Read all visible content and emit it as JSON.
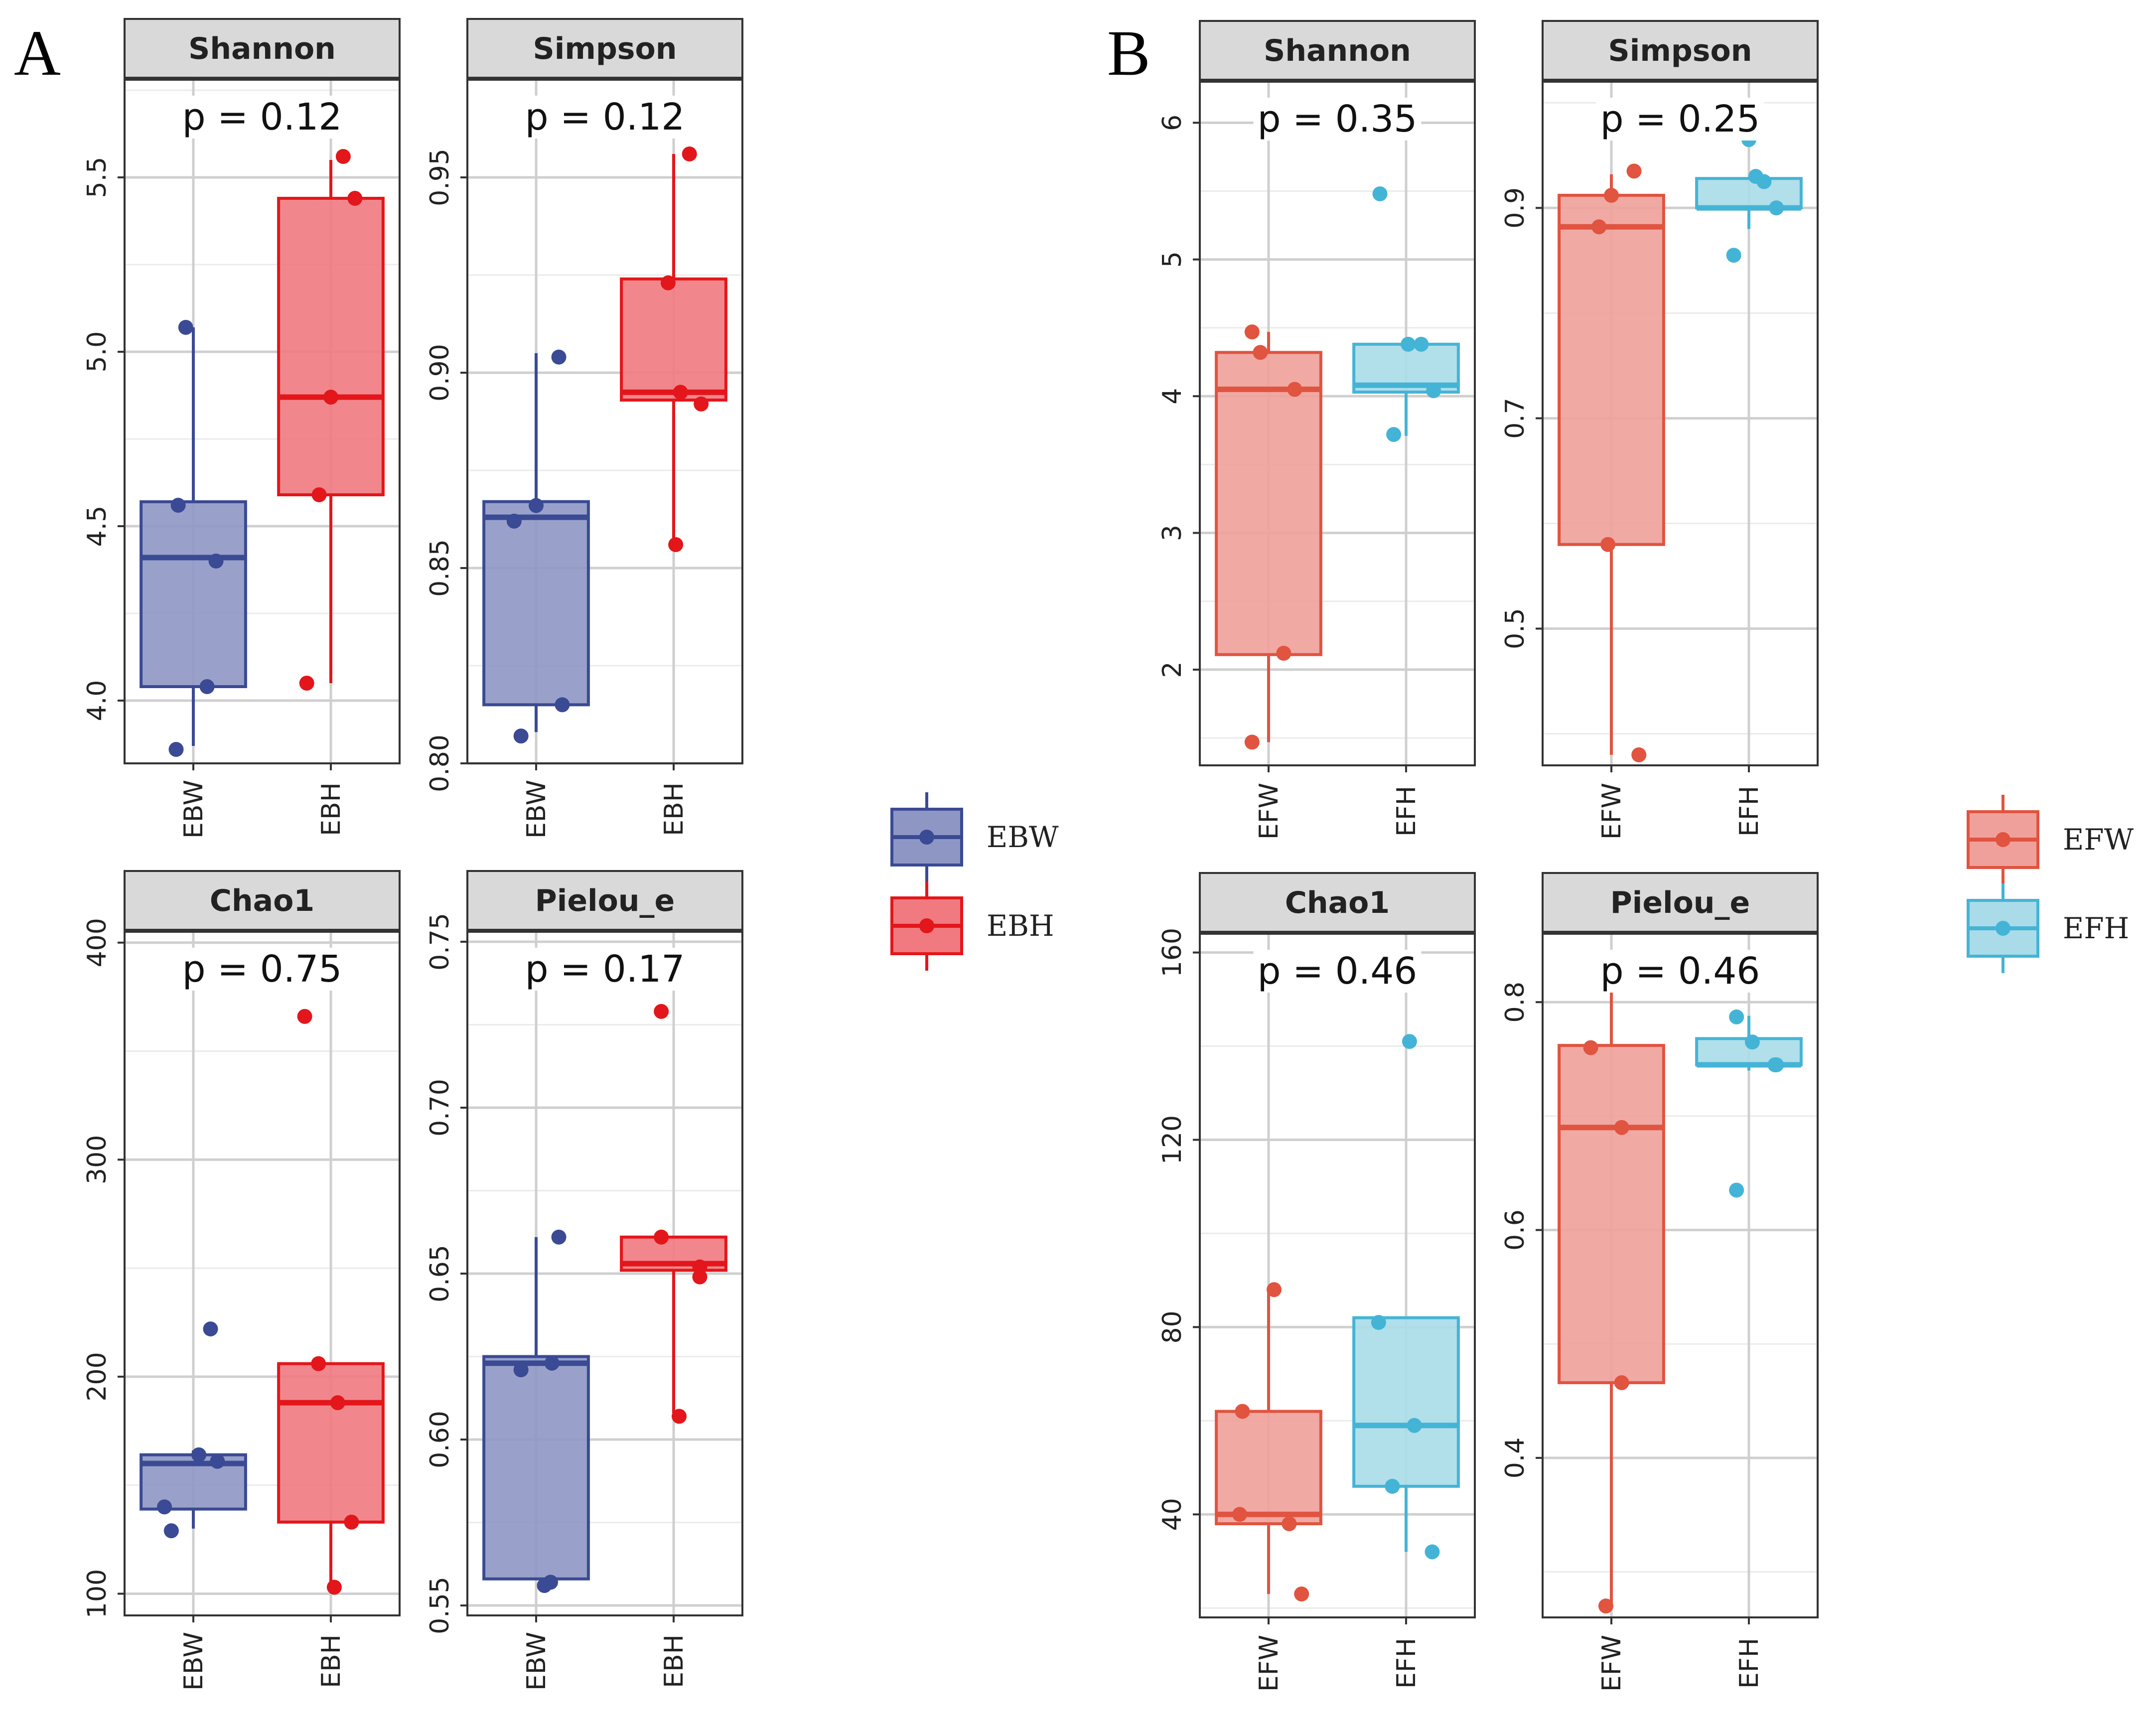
{
  "panels": [
    {
      "letter": "A",
      "groups": [
        "EBW",
        "EBH"
      ],
      "colors": {
        "EBW": "#3A4A94",
        "EBH": "#E3161B"
      },
      "fills": {
        "EBW": "#8E97C4",
        "EBH": "#F07A7F"
      },
      "legend": [
        {
          "name": "EBW",
          "color": "#3A4A94",
          "fill": "#8E97C4"
        },
        {
          "name": "EBH",
          "color": "#E3161B",
          "fill": "#F07A7F"
        }
      ]
    },
    {
      "letter": "B",
      "groups": [
        "EFW",
        "EFH"
      ],
      "colors": {
        "EFW": "#E05440",
        "EFH": "#44B4D6"
      },
      "fills": {
        "EFW": "#F0A09A",
        "EFH": "#A9DBE8"
      },
      "legend": [
        {
          "name": "EFW",
          "color": "#E05440",
          "fill": "#F0A09A"
        },
        {
          "name": "EFH",
          "color": "#44B4D6",
          "fill": "#A9DBE8"
        }
      ]
    }
  ],
  "chart_data": [
    {
      "type": "box",
      "panel": "A",
      "title": "Shannon",
      "p_label": "p = 0.12",
      "ylim": [
        3.82,
        5.78
      ],
      "yticks": [
        4.0,
        4.5,
        5.0,
        5.5
      ],
      "ytick_labels": [
        "4.0",
        "4.5",
        "5.0",
        "5.5"
      ],
      "categories": [
        "EBW",
        "EBH"
      ],
      "boxes": [
        {
          "group": "EBW",
          "min": 3.87,
          "q1": 4.04,
          "median": 4.41,
          "q3": 4.57,
          "max": 5.07
        },
        {
          "group": "EBH",
          "min": 4.05,
          "q1": 4.59,
          "median": 4.87,
          "q3": 5.44,
          "max": 5.55
        }
      ],
      "points": [
        {
          "group": "EBW",
          "jitter": -0.22,
          "y": 4.56
        },
        {
          "group": "EBW",
          "jitter": -0.25,
          "y": 3.86
        },
        {
          "group": "EBW",
          "jitter": -0.11,
          "y": 5.07
        },
        {
          "group": "EBW",
          "jitter": 0.2,
          "y": 4.04
        },
        {
          "group": "EBW",
          "jitter": 0.33,
          "y": 4.4
        },
        {
          "group": "EBH",
          "jitter": -0.35,
          "y": 4.05
        },
        {
          "group": "EBH",
          "jitter": -0.17,
          "y": 4.59
        },
        {
          "group": "EBH",
          "jitter": 0.0,
          "y": 4.87
        },
        {
          "group": "EBH",
          "jitter": 0.18,
          "y": 5.56
        },
        {
          "group": "EBH",
          "jitter": 0.35,
          "y": 5.44
        }
      ]
    },
    {
      "type": "box",
      "panel": "A",
      "title": "Simpson",
      "p_label": "p = 0.12",
      "ylim": [
        0.8,
        0.975
      ],
      "yticks": [
        0.8,
        0.85,
        0.9,
        0.95
      ],
      "ytick_labels": [
        "0.80",
        "0.85",
        "0.90",
        "0.95"
      ],
      "categories": [
        "EBW",
        "EBH"
      ],
      "boxes": [
        {
          "group": "EBW",
          "min": 0.808,
          "q1": 0.815,
          "median": 0.863,
          "q3": 0.867,
          "max": 0.905
        },
        {
          "group": "EBH",
          "min": 0.856,
          "q1": 0.893,
          "median": 0.895,
          "q3": 0.924,
          "max": 0.956
        }
      ],
      "points": [
        {
          "group": "EBW",
          "jitter": -0.32,
          "y": 0.862
        },
        {
          "group": "EBW",
          "jitter": -0.22,
          "y": 0.807
        },
        {
          "group": "EBW",
          "jitter": 0.0,
          "y": 0.866
        },
        {
          "group": "EBW",
          "jitter": 0.33,
          "y": 0.904
        },
        {
          "group": "EBW",
          "jitter": 0.38,
          "y": 0.815
        },
        {
          "group": "EBH",
          "jitter": -0.08,
          "y": 0.923
        },
        {
          "group": "EBH",
          "jitter": 0.03,
          "y": 0.856
        },
        {
          "group": "EBH",
          "jitter": 0.1,
          "y": 0.895
        },
        {
          "group": "EBH",
          "jitter": 0.23,
          "y": 0.956
        },
        {
          "group": "EBH",
          "jitter": 0.4,
          "y": 0.892
        }
      ]
    },
    {
      "type": "box",
      "panel": "A",
      "title": "Chao1",
      "p_label": "p = 0.75",
      "ylim": [
        90,
        405
      ],
      "yticks": [
        100,
        200,
        300,
        400
      ],
      "ytick_labels": [
        "100",
        "200",
        "300",
        "400"
      ],
      "categories": [
        "EBW",
        "EBH"
      ],
      "boxes": [
        {
          "group": "EBW",
          "min": 130,
          "q1": 139,
          "median": 160,
          "q3": 164,
          "max": 166
        },
        {
          "group": "EBH",
          "min": 103,
          "q1": 133,
          "median": 188,
          "q3": 206,
          "max": 206
        }
      ],
      "points": [
        {
          "group": "EBW",
          "jitter": -0.42,
          "y": 140
        },
        {
          "group": "EBW",
          "jitter": -0.32,
          "y": 129
        },
        {
          "group": "EBW",
          "jitter": 0.08,
          "y": 164
        },
        {
          "group": "EBW",
          "jitter": 0.25,
          "y": 222
        },
        {
          "group": "EBW",
          "jitter": 0.35,
          "y": 161
        },
        {
          "group": "EBH",
          "jitter": -0.38,
          "y": 366
        },
        {
          "group": "EBH",
          "jitter": -0.18,
          "y": 206
        },
        {
          "group": "EBH",
          "jitter": 0.05,
          "y": 103
        },
        {
          "group": "EBH",
          "jitter": 0.1,
          "y": 188
        },
        {
          "group": "EBH",
          "jitter": 0.3,
          "y": 133
        }
      ]
    },
    {
      "type": "box",
      "panel": "A",
      "title": "Pielou_e",
      "p_label": "p = 0.17",
      "ylim": [
        0.547,
        0.753
      ],
      "yticks": [
        0.55,
        0.6,
        0.65,
        0.7,
        0.75
      ],
      "ytick_labels": [
        "0.55",
        "0.60",
        "0.65",
        "0.70",
        "0.75"
      ],
      "categories": [
        "EBW",
        "EBH"
      ],
      "boxes": [
        {
          "group": "EBW",
          "min": 0.558,
          "q1": 0.558,
          "median": 0.623,
          "q3": 0.625,
          "max": 0.661
        },
        {
          "group": "EBH",
          "min": 0.608,
          "q1": 0.651,
          "median": 0.653,
          "q3": 0.661,
          "max": 0.661
        }
      ],
      "points": [
        {
          "group": "EBW",
          "jitter": -0.22,
          "y": 0.621
        },
        {
          "group": "EBW",
          "jitter": 0.12,
          "y": 0.556
        },
        {
          "group": "EBW",
          "jitter": 0.21,
          "y": 0.557
        },
        {
          "group": "EBW",
          "jitter": 0.23,
          "y": 0.623
        },
        {
          "group": "EBW",
          "jitter": 0.33,
          "y": 0.661
        },
        {
          "group": "EBH",
          "jitter": -0.18,
          "y": 0.729
        },
        {
          "group": "EBH",
          "jitter": -0.18,
          "y": 0.661
        },
        {
          "group": "EBH",
          "jitter": 0.08,
          "y": 0.607
        },
        {
          "group": "EBH",
          "jitter": 0.38,
          "y": 0.652
        },
        {
          "group": "EBH",
          "jitter": 0.38,
          "y": 0.649
        }
      ]
    },
    {
      "type": "box",
      "panel": "B",
      "title": "Shannon",
      "p_label": "p = 0.35",
      "ylim": [
        1.3,
        6.3
      ],
      "yticks": [
        2,
        3,
        4,
        5,
        6
      ],
      "ytick_labels": [
        "2",
        "3",
        "4",
        "5",
        "6"
      ],
      "categories": [
        "EFW",
        "EFH"
      ],
      "boxes": [
        {
          "group": "EFW",
          "min": 1.47,
          "q1": 2.11,
          "median": 4.05,
          "q3": 4.32,
          "max": 4.47
        },
        {
          "group": "EFH",
          "min": 3.71,
          "q1": 4.03,
          "median": 4.08,
          "q3": 4.38,
          "max": 4.38
        }
      ],
      "points": [
        {
          "group": "EFW",
          "jitter": -0.24,
          "y": 4.47
        },
        {
          "group": "EFW",
          "jitter": -0.24,
          "y": 1.47
        },
        {
          "group": "EFW",
          "jitter": -0.12,
          "y": 4.32
        },
        {
          "group": "EFW",
          "jitter": 0.22,
          "y": 2.12
        },
        {
          "group": "EFW",
          "jitter": 0.38,
          "y": 4.05
        },
        {
          "group": "EFH",
          "jitter": -0.38,
          "y": 5.48
        },
        {
          "group": "EFH",
          "jitter": -0.18,
          "y": 3.72
        },
        {
          "group": "EFH",
          "jitter": 0.03,
          "y": 4.38
        },
        {
          "group": "EFH",
          "jitter": 0.22,
          "y": 4.38
        },
        {
          "group": "EFH",
          "jitter": 0.4,
          "y": 4.04
        }
      ]
    },
    {
      "type": "box",
      "panel": "B",
      "title": "Simpson",
      "p_label": "p = 0.25",
      "ylim": [
        0.37,
        1.02
      ],
      "yticks": [
        0.5,
        0.7,
        0.9
      ],
      "ytick_labels": [
        "0.5",
        "0.7",
        "0.9"
      ],
      "categories": [
        "EFW",
        "EFH"
      ],
      "boxes": [
        {
          "group": "EFW",
          "min": 0.38,
          "q1": 0.58,
          "median": 0.882,
          "q3": 0.912,
          "max": 0.932
        },
        {
          "group": "EFH",
          "min": 0.88,
          "q1": 0.9,
          "median": 0.9,
          "q3": 0.928,
          "max": 0.928
        }
      ],
      "points": [
        {
          "group": "EFW",
          "jitter": -0.18,
          "y": 0.882
        },
        {
          "group": "EFW",
          "jitter": -0.05,
          "y": 0.58
        },
        {
          "group": "EFW",
          "jitter": 0.0,
          "y": 0.912
        },
        {
          "group": "EFW",
          "jitter": 0.33,
          "y": 0.935
        },
        {
          "group": "EFW",
          "jitter": 0.4,
          "y": 0.38
        },
        {
          "group": "EFH",
          "jitter": -0.22,
          "y": 0.855
        },
        {
          "group": "EFH",
          "jitter": 0.0,
          "y": 0.965
        },
        {
          "group": "EFH",
          "jitter": 0.1,
          "y": 0.93
        },
        {
          "group": "EFH",
          "jitter": 0.22,
          "y": 0.925
        },
        {
          "group": "EFH",
          "jitter": 0.4,
          "y": 0.9
        }
      ]
    },
    {
      "type": "box",
      "panel": "B",
      "title": "Chao1",
      "p_label": "p = 0.46",
      "ylim": [
        18,
        164
      ],
      "yticks": [
        40,
        80,
        120,
        160
      ],
      "ytick_labels": [
        "40",
        "80",
        "120",
        "160"
      ],
      "categories": [
        "EFW",
        "EFH"
      ],
      "boxes": [
        {
          "group": "EFW",
          "min": 23,
          "q1": 38,
          "median": 40,
          "q3": 62,
          "max": 88
        },
        {
          "group": "EFH",
          "min": 32,
          "q1": 46,
          "median": 59,
          "q3": 82,
          "max": 82
        }
      ],
      "points": [
        {
          "group": "EFW",
          "jitter": -0.42,
          "y": 40
        },
        {
          "group": "EFW",
          "jitter": -0.38,
          "y": 62
        },
        {
          "group": "EFW",
          "jitter": 0.08,
          "y": 88
        },
        {
          "group": "EFW",
          "jitter": 0.3,
          "y": 38
        },
        {
          "group": "EFW",
          "jitter": 0.48,
          "y": 23
        },
        {
          "group": "EFH",
          "jitter": -0.4,
          "y": 81
        },
        {
          "group": "EFH",
          "jitter": -0.2,
          "y": 46
        },
        {
          "group": "EFH",
          "jitter": 0.05,
          "y": 141
        },
        {
          "group": "EFH",
          "jitter": 0.12,
          "y": 59
        },
        {
          "group": "EFH",
          "jitter": 0.38,
          "y": 32
        }
      ]
    },
    {
      "type": "box",
      "panel": "B",
      "title": "Pielou_e",
      "p_label": "p = 0.46",
      "ylim": [
        0.26,
        0.86
      ],
      "yticks": [
        0.4,
        0.6,
        0.8
      ],
      "ytick_labels": [
        "0.4",
        "0.6",
        "0.8"
      ],
      "categories": [
        "EFW",
        "EFH"
      ],
      "boxes": [
        {
          "group": "EFW",
          "min": 0.27,
          "q1": 0.466,
          "median": 0.69,
          "q3": 0.762,
          "max": 0.826
        },
        {
          "group": "EFH",
          "min": 0.74,
          "q1": 0.745,
          "median": 0.745,
          "q3": 0.768,
          "max": 0.788
        }
      ],
      "points": [
        {
          "group": "EFW",
          "jitter": -0.3,
          "y": 0.76
        },
        {
          "group": "EFW",
          "jitter": -0.08,
          "y": 0.27
        },
        {
          "group": "EFW",
          "jitter": 0.15,
          "y": 0.466
        },
        {
          "group": "EFW",
          "jitter": 0.15,
          "y": 0.69
        },
        {
          "group": "EFW",
          "jitter": 0.3,
          "y": 0.824
        },
        {
          "group": "EFH",
          "jitter": -0.18,
          "y": 0.635
        },
        {
          "group": "EFH",
          "jitter": -0.18,
          "y": 0.787
        },
        {
          "group": "EFH",
          "jitter": 0.05,
          "y": 0.765
        },
        {
          "group": "EFH",
          "jitter": 0.38,
          "y": 0.745
        },
        {
          "group": "EFH",
          "jitter": 0.4,
          "y": 0.745
        }
      ]
    }
  ]
}
